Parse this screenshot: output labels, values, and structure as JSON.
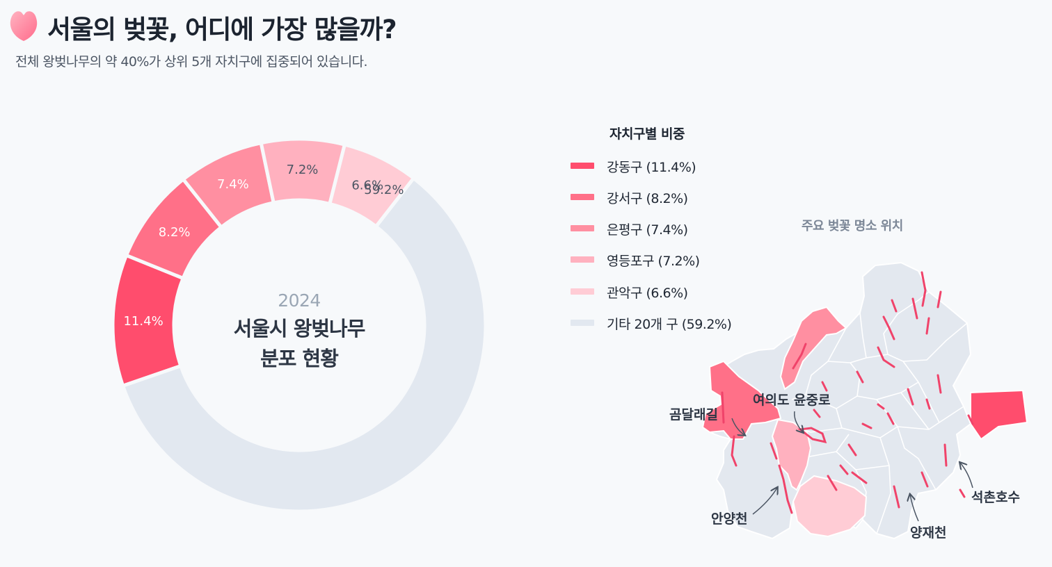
{
  "header": {
    "title": "서울의 벚꽃, 어디에 가장 많을까?",
    "subtitle": "전체 왕벚나무의 약 40%가 상위 5개 자치구에 집중되어 있습니다."
  },
  "donut_center": {
    "year": "2024",
    "line1": "서울시 왕벚나무",
    "line2": "분포 현황"
  },
  "legend": {
    "title": "자치구별 비중",
    "items": [
      {
        "label": "강동구 (11.4%)",
        "color": "#ff4d6d"
      },
      {
        "label": "강서구 (8.2%)",
        "color": "#ff7088"
      },
      {
        "label": "은평구 (7.4%)",
        "color": "#ff8fa1"
      },
      {
        "label": "영등포구 (7.2%)",
        "color": "#ffb1bf"
      },
      {
        "label": "관악구 (6.6%)",
        "color": "#ffccd5"
      },
      {
        "label": "기타 20개 구 (59.2%)",
        "color": "#e2e8f0"
      }
    ]
  },
  "map": {
    "title": "주요 벚꽃 명소 위치",
    "labels": [
      "여의도 윤중로",
      "곰달래길",
      "안양천",
      "양재천",
      "석촌호수"
    ]
  },
  "chart_data": {
    "type": "pie",
    "donut": true,
    "title": "서울시 왕벚나무 분포 현황",
    "categories": [
      "강동구",
      "강서구",
      "은평구",
      "영등포구",
      "관악구",
      "기타 20개 구"
    ],
    "values": [
      11.4,
      8.2,
      7.4,
      7.2,
      6.6,
      59.2
    ],
    "value_labels": [
      "11.4%",
      "8.2%",
      "7.4%",
      "7.2%",
      "6.6%",
      "59.2%"
    ],
    "colors": [
      "#ff4d6d",
      "#ff7088",
      "#ff8fa1",
      "#ffb1bf",
      "#ffccd5",
      "#e2e8f0"
    ],
    "label_colors": [
      "#ffffff",
      "#ffffff",
      "#ffffff",
      "#4b5563",
      "#4b5563",
      "#4b5563"
    ],
    "start_angle_deg": 161
  }
}
